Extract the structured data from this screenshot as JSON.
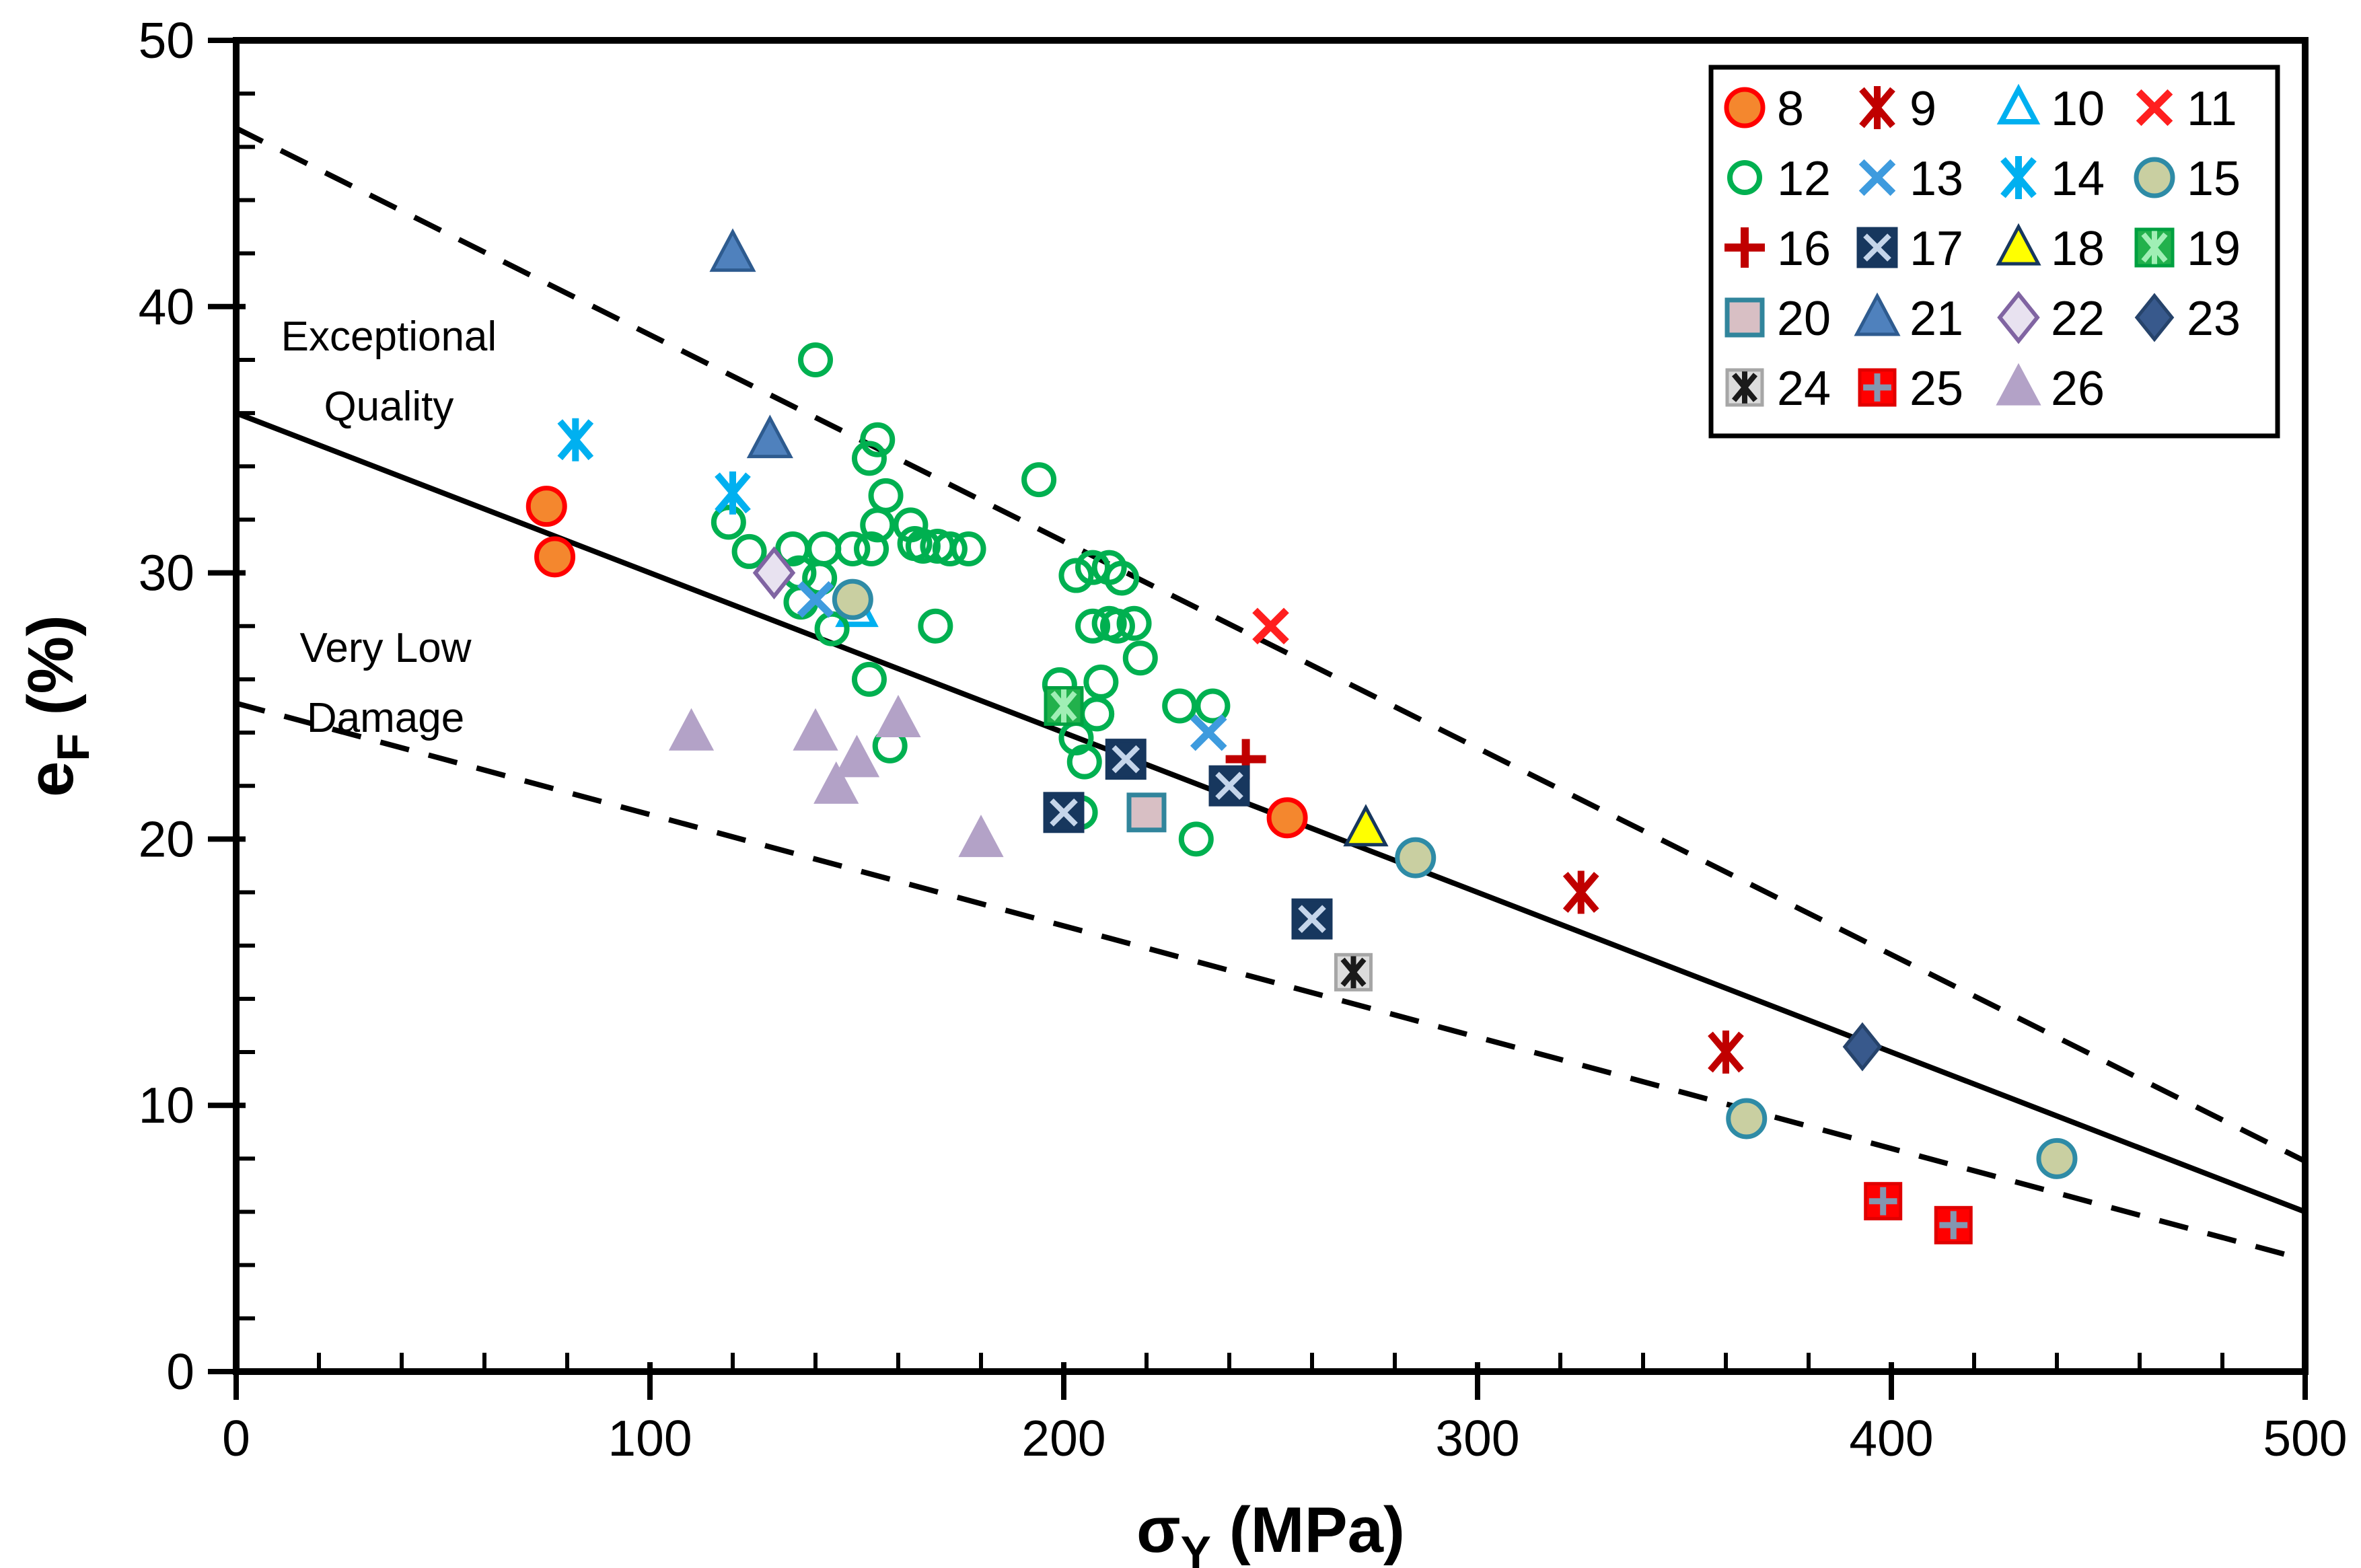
{
  "figure": {
    "background": "#FFFFFF",
    "border": "#000000"
  },
  "chart_data": {
    "type": "scatter",
    "title": "",
    "xlabel": {
      "main": "σ",
      "sub": "Y",
      "rest": " (MPa)"
    },
    "ylabel": {
      "main": "e",
      "sub": "F",
      "rest": " (%)"
    },
    "xlim": [
      0,
      500
    ],
    "ylim": [
      0,
      50
    ],
    "x_ticks": [
      0,
      100,
      200,
      300,
      400,
      500
    ],
    "y_ticks": [
      0,
      10,
      20,
      30,
      40,
      50
    ],
    "x_minor_step": 20,
    "y_minor_step": 2,
    "grid": false,
    "legend_position": "top-right",
    "legend_columns": 4,
    "annotations": [
      {
        "name": "exceptional-quality",
        "lines": [
          "Exceptional",
          "Quality"
        ],
        "x": 36.9,
        "y": 37.5
      },
      {
        "name": "very-low-damage",
        "lines": [
          "Very Low",
          "Damage"
        ],
        "x": 36.1,
        "y": 25.8
      }
    ],
    "lines": [
      {
        "name": "upper-bound-dashed",
        "style": "dashed",
        "color": "#000000",
        "x1": 0,
        "y1": 46.7,
        "x2": 500,
        "y2": 7.9
      },
      {
        "name": "mean-trend-solid",
        "style": "solid",
        "color": "#000000",
        "x1": 0,
        "y1": 36.0,
        "x2": 500,
        "y2": 6.0
      },
      {
        "name": "lower-bound-dashed",
        "style": "dashed",
        "color": "#000000",
        "x1": 0,
        "y1": 25.1,
        "x2": 500,
        "y2": 4.2
      }
    ],
    "series": [
      {
        "label": "8",
        "marker": "circle-filled",
        "fill": "#F4872E",
        "stroke": "#FF0000",
        "size": 30,
        "points": [
          [
            75,
            32.5
          ],
          [
            77,
            30.6
          ],
          [
            254,
            20.8
          ]
        ]
      },
      {
        "label": "9",
        "marker": "asterisk",
        "fill": "none",
        "stroke": "#C00000",
        "size": 32,
        "points": [
          [
            325,
            18
          ],
          [
            360,
            12
          ]
        ]
      },
      {
        "label": "10",
        "marker": "triangle-open",
        "fill": "none",
        "stroke": "#00B0F0",
        "size": 27,
        "points": [
          [
            150,
            28.6
          ]
        ]
      },
      {
        "label": "11",
        "marker": "x",
        "fill": "none",
        "stroke": "#FF1F1F",
        "size": 30,
        "points": [
          [
            250,
            28
          ]
        ]
      },
      {
        "label": "12",
        "marker": "circle-open",
        "fill": "none",
        "stroke": "#00B050",
        "size": 27,
        "points": [
          [
            119,
            31.9
          ],
          [
            124,
            30.8
          ],
          [
            134.5,
            30.9
          ],
          [
            136,
            30
          ],
          [
            136.5,
            28.9
          ],
          [
            140,
            38
          ],
          [
            141,
            29.8
          ],
          [
            142,
            30.9
          ],
          [
            144,
            27.9
          ],
          [
            149,
            30.9
          ],
          [
            153,
            34.3
          ],
          [
            153,
            26
          ],
          [
            153.5,
            30.9
          ],
          [
            155,
            35
          ],
          [
            155,
            31.8
          ],
          [
            157,
            32.9
          ],
          [
            158,
            23.5
          ],
          [
            163,
            31.8
          ],
          [
            164,
            31.1
          ],
          [
            166,
            31
          ],
          [
            169.5,
            31
          ],
          [
            169,
            28
          ],
          [
            172.5,
            30.9
          ],
          [
            177,
            30.9
          ],
          [
            194,
            33.5
          ],
          [
            199,
            25.8
          ],
          [
            203,
            29.9
          ],
          [
            203,
            23.8
          ],
          [
            204,
            21
          ],
          [
            205,
            22.9
          ],
          [
            207,
            30.2
          ],
          [
            207,
            28
          ],
          [
            208,
            24.7
          ],
          [
            209,
            25.9
          ],
          [
            211,
            30.2
          ],
          [
            211,
            28.1
          ],
          [
            213,
            28
          ],
          [
            214,
            29.8
          ],
          [
            217,
            28.1
          ],
          [
            218.5,
            26.8
          ],
          [
            228,
            25
          ],
          [
            232,
            20
          ],
          [
            236,
            25
          ]
        ]
      },
      {
        "label": "13",
        "marker": "x",
        "fill": "none",
        "stroke": "#3E9BDE",
        "size": 30,
        "points": [
          [
            140,
            29
          ],
          [
            235,
            24
          ]
        ]
      },
      {
        "label": "14",
        "marker": "asterisk",
        "fill": "none",
        "stroke": "#00B0F0",
        "size": 32,
        "points": [
          [
            82,
            35
          ],
          [
            120,
            33
          ]
        ]
      },
      {
        "label": "15",
        "marker": "circle-filled",
        "fill": "#C9CFA1",
        "stroke": "#2E8BA6",
        "size": 30,
        "points": [
          [
            149,
            29
          ],
          [
            285,
            19.3
          ],
          [
            365,
            9.5
          ],
          [
            440,
            8
          ]
        ]
      },
      {
        "label": "16",
        "marker": "plus",
        "fill": "none",
        "stroke": "#C00000",
        "size": 30,
        "points": [
          [
            244,
            23
          ]
        ]
      },
      {
        "label": "17",
        "marker": "square-x",
        "fill": "#17375E",
        "stroke": "#17375E",
        "inner": "#C5D5EA",
        "size": 31,
        "points": [
          [
            200,
            21
          ],
          [
            215,
            23
          ],
          [
            240,
            22
          ],
          [
            260,
            17
          ]
        ]
      },
      {
        "label": "18",
        "marker": "triangle-filled",
        "fill": "#FFFF00",
        "stroke": "#17375E",
        "size": 31,
        "points": [
          [
            273,
            20.4
          ]
        ]
      },
      {
        "label": "19",
        "marker": "square-asterisk",
        "fill": "#22B14C",
        "stroke": "#00A040",
        "inner": "#A0EFB5",
        "size": 30,
        "points": [
          [
            200,
            25
          ]
        ]
      },
      {
        "label": "20",
        "marker": "square-filled",
        "fill": "#D8BFC4",
        "stroke": "#31859C",
        "size": 29,
        "points": [
          [
            220,
            21
          ]
        ]
      },
      {
        "label": "21",
        "marker": "triangle-filled",
        "fill": "#4F81BD",
        "stroke": "#2E5B8F",
        "size": 32,
        "points": [
          [
            120,
            42
          ],
          [
            129,
            35
          ]
        ]
      },
      {
        "label": "22",
        "marker": "diamond-open",
        "fill": "#E8E2F0",
        "stroke": "#8064A2",
        "size": 31,
        "points": [
          [
            130,
            30
          ]
        ]
      },
      {
        "label": "23",
        "marker": "diamond-filled",
        "fill": "#38598C",
        "stroke": "#26436B",
        "size": 29,
        "points": [
          [
            393,
            12.2
          ]
        ]
      },
      {
        "label": "24",
        "marker": "square-asterisk",
        "fill": "#DCDCDC",
        "stroke": "#A6A6A6",
        "inner": "#1A1A1A",
        "size": 29,
        "points": [
          [
            270,
            15
          ]
        ]
      },
      {
        "label": "25",
        "marker": "square-plus",
        "fill": "#FF0000",
        "stroke": "#E00000",
        "inner": "#8496B0",
        "size": 29,
        "points": [
          [
            398,
            6.4
          ],
          [
            415,
            5.5
          ]
        ]
      },
      {
        "label": "26",
        "marker": "triangle-filled",
        "fill": "#B3A2C7",
        "stroke": "#B3A2C7",
        "size": 31,
        "points": [
          [
            110,
            24
          ],
          [
            140,
            24
          ],
          [
            145,
            22
          ],
          [
            150,
            23
          ],
          [
            160,
            24.5
          ],
          [
            180,
            20
          ]
        ]
      }
    ]
  }
}
